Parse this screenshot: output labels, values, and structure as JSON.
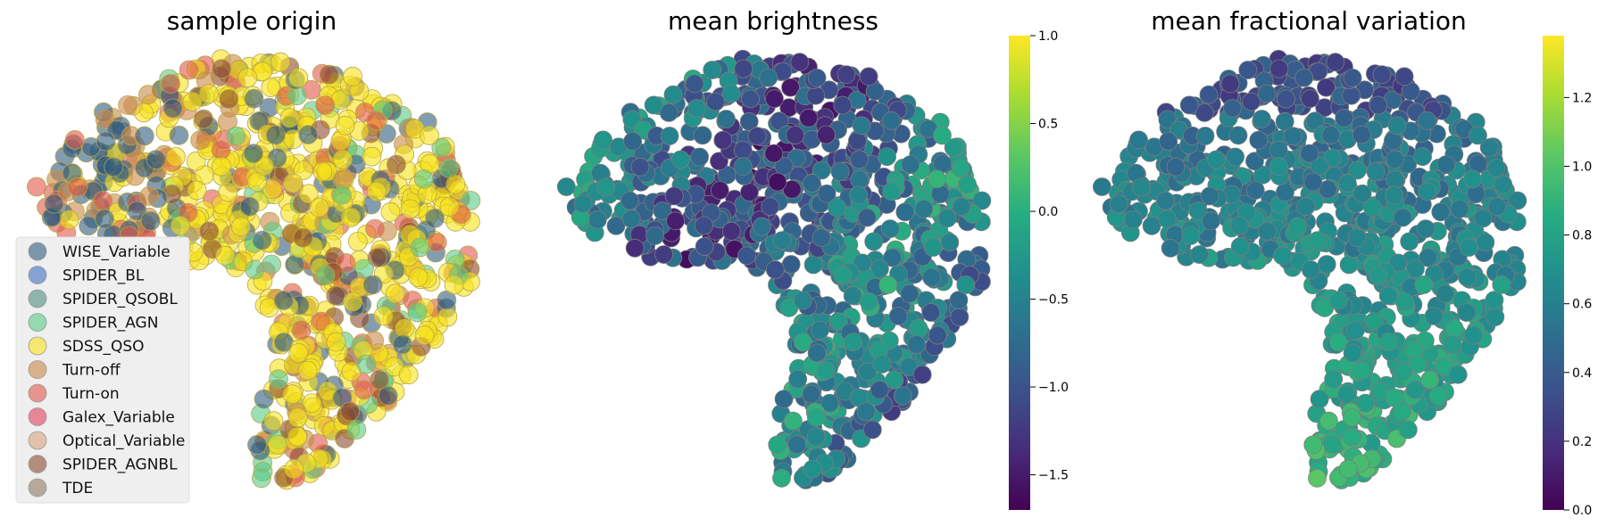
{
  "chart_data": [
    {
      "type": "scatter",
      "title": "sample origin",
      "legend_position": "lower-left",
      "series": [
        {
          "name": "WISE_Variable",
          "color": "#2f5a7e"
        },
        {
          "name": "SPIDER_BL",
          "color": "#3c6fbf"
        },
        {
          "name": "SPIDER_QSOBL",
          "color": "#4e8c7e"
        },
        {
          "name": "SPIDER_AGN",
          "color": "#59c987"
        },
        {
          "name": "SDSS_QSO",
          "color": "#f7e21a"
        },
        {
          "name": "Turn-off",
          "color": "#c9894a"
        },
        {
          "name": "Turn-on",
          "color": "#e0564a"
        },
        {
          "name": "Galex_Variable",
          "color": "#e0405a"
        },
        {
          "name": "Optical_Variable",
          "color": "#d9a37c"
        },
        {
          "name": "SPIDER_AGNBL",
          "color": "#8a4a30"
        },
        {
          "name": "TDE",
          "color": "#8e7a62"
        }
      ]
    },
    {
      "type": "scatter",
      "title": "mean brightness",
      "colormap": "viridis",
      "colorbar": {
        "min": -1.7,
        "max": 1.0,
        "ticks": [
          "1.0",
          "0.5",
          "0.0",
          "−0.5",
          "−1.0",
          "−1.5"
        ],
        "tick_values": [
          1.0,
          0.5,
          0.0,
          -0.5,
          -1.0,
          -1.5
        ]
      }
    },
    {
      "type": "scatter",
      "title": "mean fractional variation",
      "colormap": "viridis",
      "colorbar": {
        "min": 0.0,
        "max": 1.38,
        "ticks": [
          "1.2",
          "1.0",
          "0.8",
          "0.6",
          "0.4",
          "0.2",
          "0.0"
        ],
        "tick_values": [
          1.2,
          1.0,
          0.8,
          0.6,
          0.4,
          0.2,
          0.0
        ]
      }
    }
  ]
}
